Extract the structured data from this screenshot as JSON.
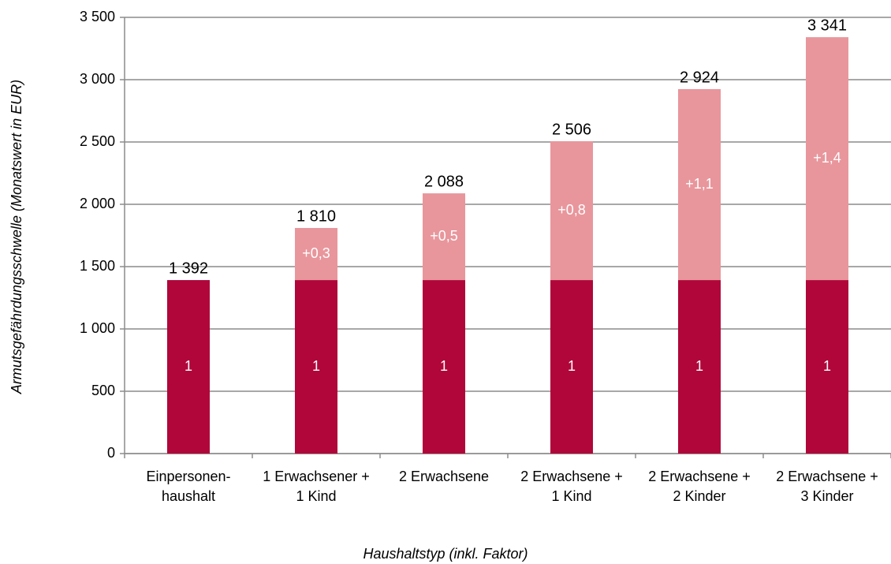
{
  "chart_data": {
    "type": "stacked_bar",
    "x_label": "Haushaltstyp (inkl. Faktor)",
    "y_label": "Armutsgefährdungsschwelle (Monatswert in EUR)",
    "categories": [
      [
        "Einpersonen-",
        "haushalt"
      ],
      [
        "1 Erwachsener +",
        "1 Kind"
      ],
      [
        "2 Erwachsene"
      ],
      [
        "2 Erwachsene +",
        "1 Kind"
      ],
      [
        "2 Erwachsene +",
        "2 Kinder"
      ],
      [
        "2 Erwachsene +",
        "3 Kinder"
      ]
    ],
    "series": [
      {
        "color": "#b0063a",
        "values": [
          1392,
          1392,
          1392,
          1392,
          1392,
          1392
        ],
        "labels": [
          "1",
          "1",
          "1",
          "1",
          "1",
          "1"
        ]
      },
      {
        "color": "#e8969c",
        "values": [
          null,
          418,
          696,
          1114,
          1532,
          1949
        ],
        "labels": [
          null,
          "+0,3",
          "+0,5",
          "+0,8",
          "+1,1",
          "+1,4"
        ]
      }
    ],
    "totals": [
      1392,
      1810,
      2088,
      2506,
      2924,
      3341
    ],
    "total_labels": [
      "1 392",
      "1 810",
      "2 088",
      "2 506",
      "2 924",
      "3 341"
    ],
    "ylim": [
      0,
      3500
    ],
    "yticks": [
      0,
      500,
      {
        "value": 1000,
        "label": "1 000"
      },
      {
        "value": 1500,
        "label": "1 500"
      },
      {
        "value": 2000,
        "label": "2 000"
      },
      {
        "value": 2500,
        "label": "2 500"
      },
      {
        "value": 3000,
        "label": "3 000"
      },
      {
        "value": 3500,
        "label": "3 500"
      }
    ],
    "grid": true
  }
}
